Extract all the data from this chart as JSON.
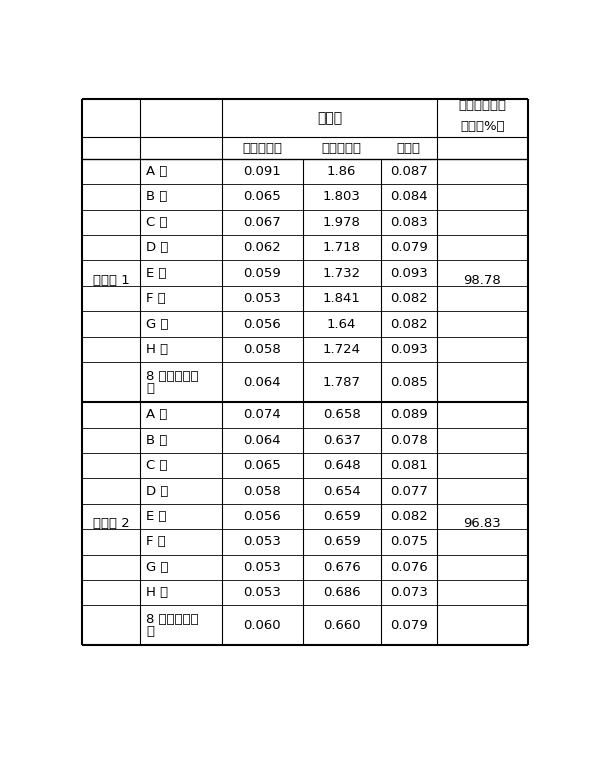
{
  "title": "",
  "sample1_label": "平行样 1",
  "sample2_label": "平行样 2",
  "header_absorbance": "吸光度",
  "header_inhibition": "试验组细胞抑\n制率（%）",
  "header_col1": "空白对照组",
  "header_col2": "细胞对照组",
  "header_col3": "试验组",
  "rows_sample1": [
    [
      "A 孔",
      "0.091",
      "1.86",
      "0.087"
    ],
    [
      "B 孔",
      "0.065",
      "1.803",
      "0.084"
    ],
    [
      "C 孔",
      "0.067",
      "1.978",
      "0.083"
    ],
    [
      "D 孔",
      "0.062",
      "1.718",
      "0.079"
    ],
    [
      "E 孔",
      "0.059",
      "1.732",
      "0.093"
    ],
    [
      "F 孔",
      "0.053",
      "1.841",
      "0.082"
    ],
    [
      "G 孔",
      "0.056",
      "1.64",
      "0.082"
    ],
    [
      "H 孔",
      "0.058",
      "1.724",
      "0.093"
    ],
    [
      "8 个孔的平均值",
      "0.064",
      "1.787",
      "0.085"
    ]
  ],
  "rows_sample2": [
    [
      "A 孔",
      "0.074",
      "0.658",
      "0.089"
    ],
    [
      "B 孔",
      "0.064",
      "0.637",
      "0.078"
    ],
    [
      "C 孔",
      "0.065",
      "0.648",
      "0.081"
    ],
    [
      "D 孔",
      "0.058",
      "0.654",
      "0.077"
    ],
    [
      "E 孔",
      "0.056",
      "0.659",
      "0.082"
    ],
    [
      "F 孔",
      "0.053",
      "0.659",
      "0.075"
    ],
    [
      "G 孔",
      "0.053",
      "0.676",
      "0.076"
    ],
    [
      "H 孔",
      "0.053",
      "0.686",
      "0.073"
    ],
    [
      "8 个孔的平均值",
      "0.060",
      "0.660",
      "0.079"
    ]
  ],
  "inhibition_rate1": "98.78",
  "inhibition_rate2": "96.83",
  "line_color": "#000000",
  "bg_color": "#ffffff",
  "text_color": "#000000",
  "font_size": 9.5
}
